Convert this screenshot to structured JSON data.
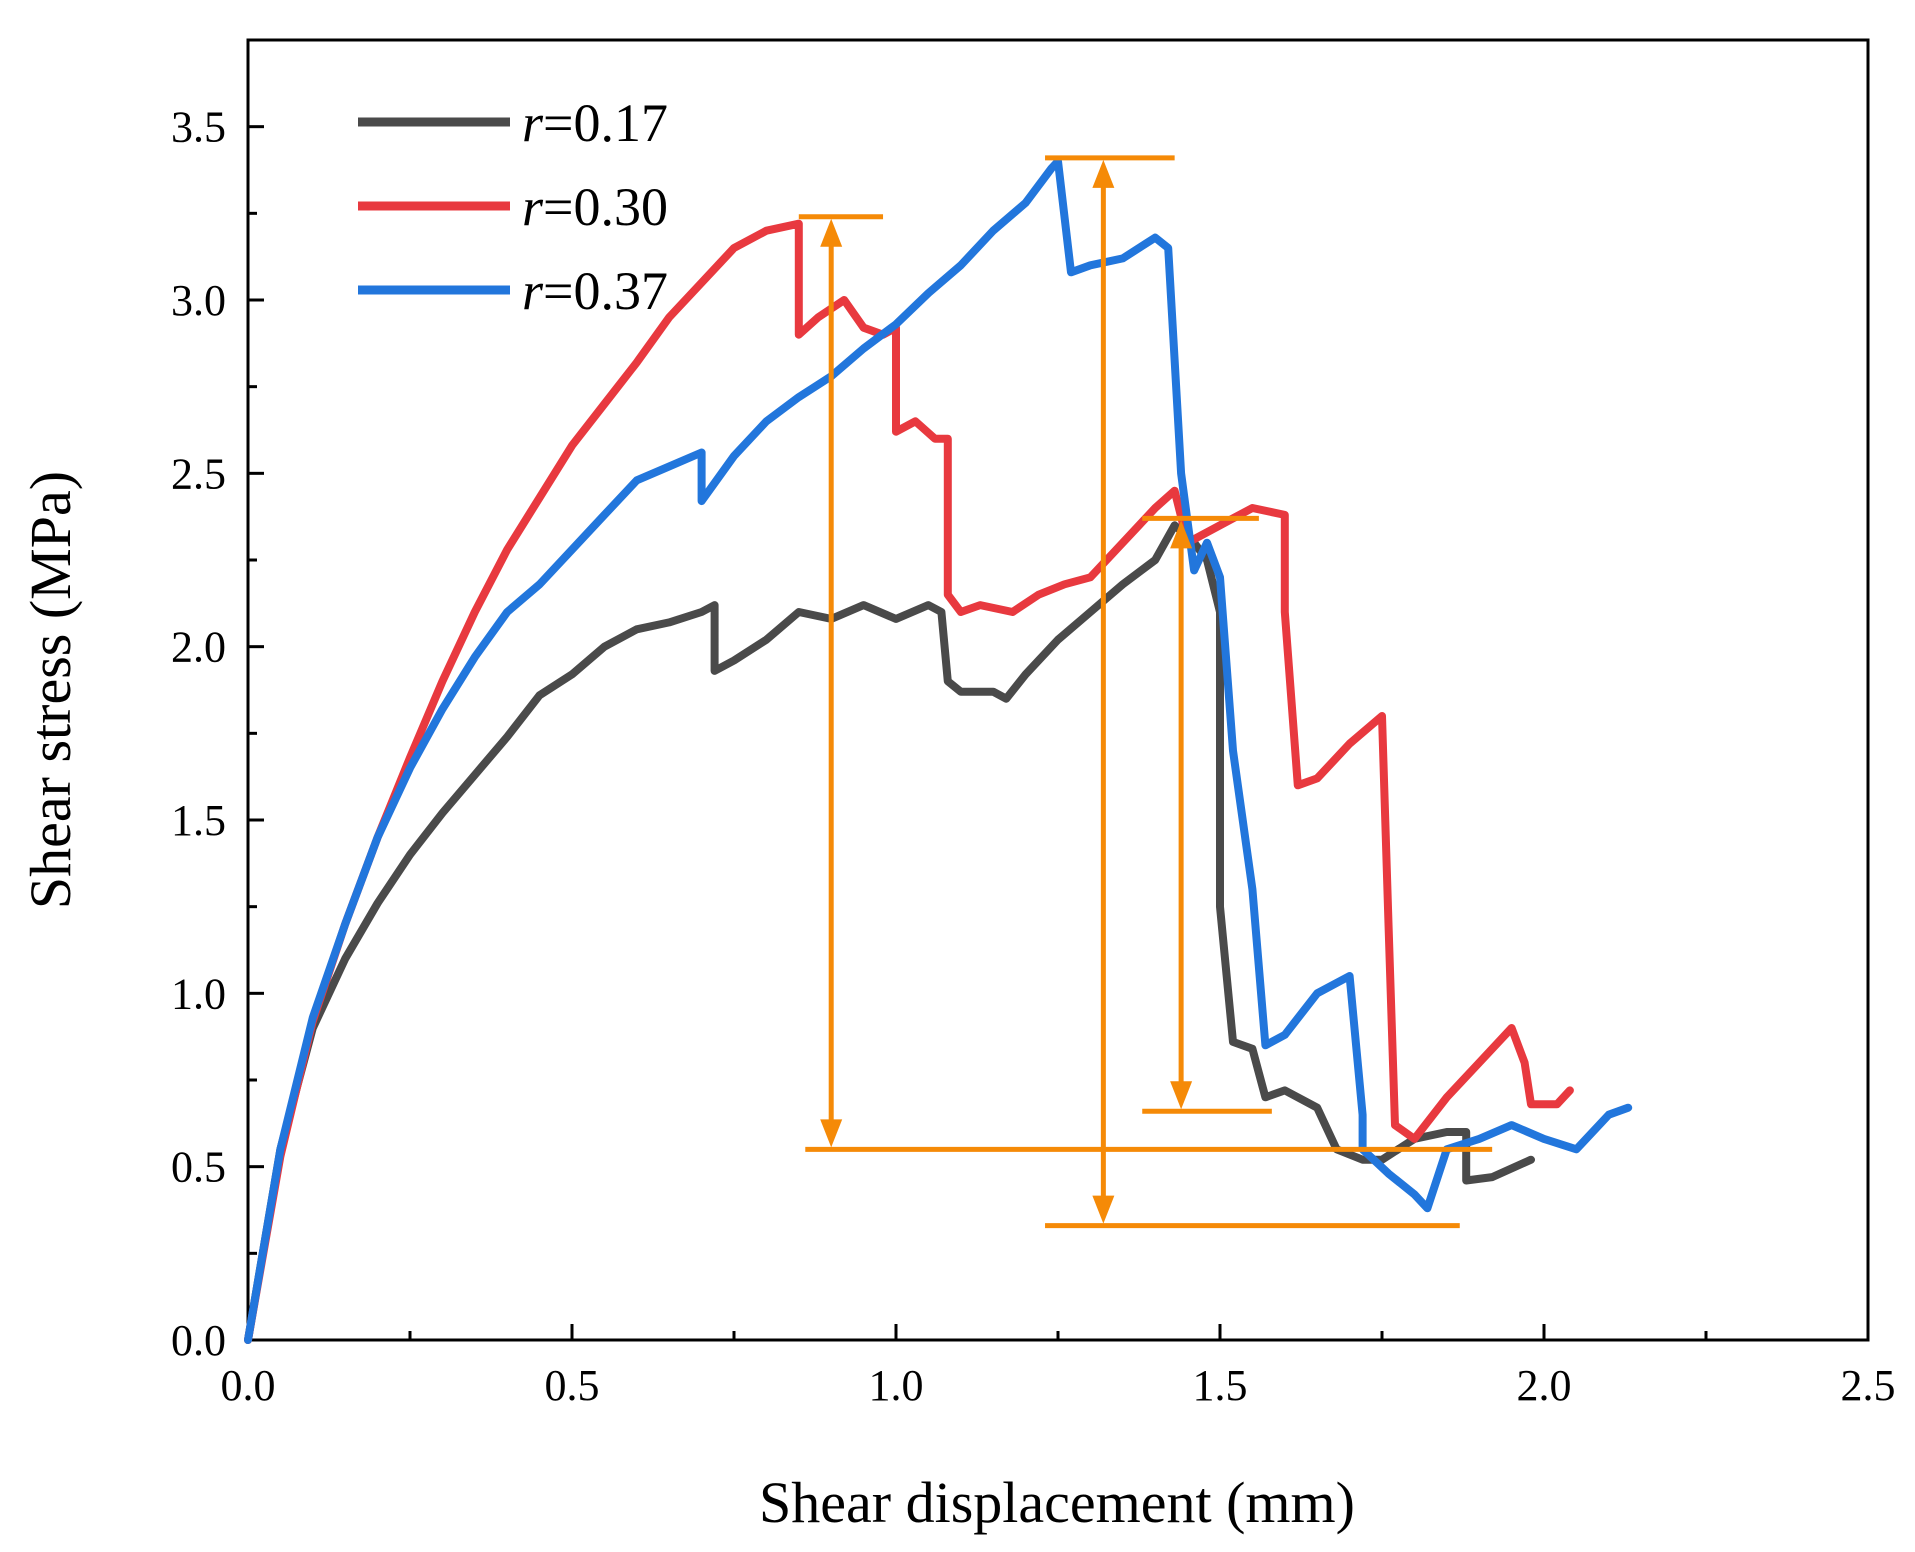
{
  "chart_data": {
    "type": "line",
    "title": "",
    "xlabel": "Shear displacement (mm)",
    "ylabel": "Shear stress (MPa)",
    "xlim": [
      0,
      2.5
    ],
    "ylim": [
      0,
      3.75
    ],
    "xticks": [
      0.0,
      0.5,
      1.0,
      1.5,
      2.0,
      2.5
    ],
    "xtick_labels": [
      "0.0",
      "0.5",
      "1.0",
      "1.5",
      "2.0",
      "2.5"
    ],
    "yticks": [
      0.0,
      0.5,
      1.0,
      1.5,
      2.0,
      2.5,
      3.0,
      3.5
    ],
    "ytick_labels": [
      "0.0",
      "0.5",
      "1.0",
      "1.5",
      "2.0",
      "2.5",
      "3.0",
      "3.5"
    ],
    "grid": false,
    "legend_position": "top-left",
    "series": [
      {
        "name": "r=0.17",
        "legend_var": "r",
        "legend_value": "=0.17",
        "color": "#4a4a4a",
        "x": [
          0.0,
          0.05,
          0.1,
          0.15,
          0.2,
          0.25,
          0.3,
          0.35,
          0.4,
          0.45,
          0.5,
          0.55,
          0.6,
          0.65,
          0.7,
          0.72,
          0.72,
          0.75,
          0.8,
          0.85,
          0.9,
          0.95,
          1.0,
          1.05,
          1.07,
          1.08,
          1.1,
          1.15,
          1.17,
          1.2,
          1.25,
          1.3,
          1.35,
          1.4,
          1.43,
          1.46,
          1.48,
          1.5,
          1.5,
          1.52,
          1.55,
          1.57,
          1.6,
          1.65,
          1.68,
          1.72,
          1.75,
          1.8,
          1.85,
          1.88,
          1.88,
          1.92,
          1.98
        ],
        "y": [
          0.0,
          0.55,
          0.9,
          1.1,
          1.26,
          1.4,
          1.52,
          1.63,
          1.74,
          1.86,
          1.92,
          2.0,
          2.05,
          2.07,
          2.1,
          2.12,
          1.93,
          1.96,
          2.02,
          2.1,
          2.08,
          2.12,
          2.08,
          2.12,
          2.1,
          1.9,
          1.87,
          1.87,
          1.85,
          1.92,
          2.02,
          2.1,
          2.18,
          2.25,
          2.35,
          2.3,
          2.25,
          2.1,
          1.25,
          0.86,
          0.84,
          0.7,
          0.72,
          0.67,
          0.55,
          0.52,
          0.52,
          0.58,
          0.6,
          0.6,
          0.46,
          0.47,
          0.52
        ]
      },
      {
        "name": "r=0.30",
        "legend_var": "r",
        "legend_value": "=0.30",
        "color": "#e8393f",
        "x": [
          0.0,
          0.05,
          0.1,
          0.15,
          0.2,
          0.25,
          0.3,
          0.35,
          0.4,
          0.45,
          0.5,
          0.55,
          0.6,
          0.65,
          0.7,
          0.75,
          0.8,
          0.85,
          0.85,
          0.88,
          0.92,
          0.95,
          0.98,
          1.0,
          1.0,
          1.03,
          1.06,
          1.08,
          1.08,
          1.1,
          1.13,
          1.18,
          1.22,
          1.26,
          1.3,
          1.35,
          1.4,
          1.43,
          1.45,
          1.5,
          1.55,
          1.6,
          1.6,
          1.62,
          1.65,
          1.7,
          1.75,
          1.76,
          1.77,
          1.8,
          1.85,
          1.9,
          1.95,
          1.97,
          1.98,
          2.02,
          2.04
        ],
        "y": [
          0.0,
          0.53,
          0.92,
          1.2,
          1.45,
          1.68,
          1.9,
          2.1,
          2.28,
          2.43,
          2.58,
          2.7,
          2.82,
          2.95,
          3.05,
          3.15,
          3.2,
          3.22,
          2.9,
          2.95,
          3.0,
          2.92,
          2.9,
          2.92,
          2.62,
          2.65,
          2.6,
          2.6,
          2.15,
          2.1,
          2.12,
          2.1,
          2.15,
          2.18,
          2.2,
          2.3,
          2.4,
          2.45,
          2.3,
          2.35,
          2.4,
          2.38,
          2.1,
          1.6,
          1.62,
          1.72,
          1.8,
          1.2,
          0.62,
          0.58,
          0.7,
          0.8,
          0.9,
          0.8,
          0.68,
          0.68,
          0.72
        ]
      },
      {
        "name": "r=0.37",
        "legend_var": "r",
        "legend_value": "=0.37",
        "color": "#2276dc",
        "x": [
          0.0,
          0.05,
          0.1,
          0.15,
          0.2,
          0.25,
          0.3,
          0.35,
          0.4,
          0.45,
          0.5,
          0.55,
          0.6,
          0.65,
          0.7,
          0.7,
          0.75,
          0.8,
          0.85,
          0.9,
          0.95,
          1.0,
          1.05,
          1.1,
          1.15,
          1.2,
          1.24,
          1.25,
          1.27,
          1.3,
          1.35,
          1.4,
          1.42,
          1.44,
          1.46,
          1.48,
          1.5,
          1.52,
          1.55,
          1.57,
          1.6,
          1.65,
          1.7,
          1.72,
          1.72,
          1.76,
          1.8,
          1.82,
          1.85,
          1.9,
          1.95,
          2.0,
          2.05,
          2.1,
          2.13
        ],
        "y": [
          0.0,
          0.55,
          0.93,
          1.2,
          1.45,
          1.65,
          1.82,
          1.97,
          2.1,
          2.18,
          2.28,
          2.38,
          2.48,
          2.52,
          2.56,
          2.42,
          2.55,
          2.65,
          2.72,
          2.78,
          2.86,
          2.93,
          3.02,
          3.1,
          3.2,
          3.28,
          3.38,
          3.4,
          3.08,
          3.1,
          3.12,
          3.18,
          3.15,
          2.5,
          2.22,
          2.3,
          2.2,
          1.7,
          1.3,
          0.85,
          0.88,
          1.0,
          1.05,
          0.65,
          0.55,
          0.48,
          0.42,
          0.38,
          0.55,
          0.58,
          0.62,
          0.58,
          0.55,
          0.65,
          0.67
        ]
      }
    ],
    "annotations": [
      {
        "name": "drop-r030",
        "color": "#f58a07",
        "x": 0.9,
        "y_top": 3.24,
        "y_bottom": 0.55,
        "top_line_x": [
          0.85,
          0.98
        ],
        "bottom_line_x": [
          0.86,
          1.92
        ]
      },
      {
        "name": "drop-r037",
        "color": "#f58a07",
        "x": 1.32,
        "y_top": 3.41,
        "y_bottom": 0.33,
        "top_line_x": [
          1.23,
          1.43
        ],
        "bottom_line_x": [
          1.23,
          1.87
        ]
      },
      {
        "name": "drop-r017",
        "color": "#f58a07",
        "x": 1.44,
        "y_top": 2.37,
        "y_bottom": 0.66,
        "top_line_x": [
          1.38,
          1.56
        ],
        "bottom_line_x": [
          1.38,
          1.58
        ]
      }
    ]
  }
}
